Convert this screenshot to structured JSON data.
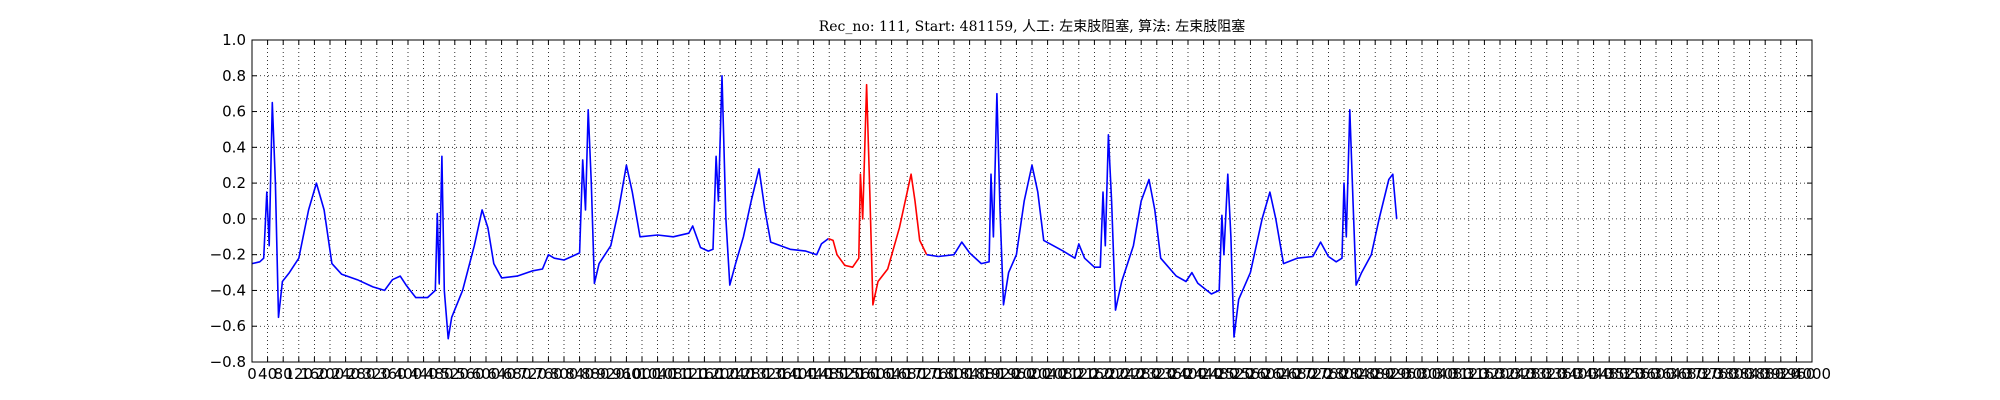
{
  "chart_data": {
    "type": "line",
    "title": "Rec_no: 111, Start: 481159, 人工: 左束肢阻塞, 算法: 左束肢阻塞",
    "xlabel": "",
    "ylabel": "",
    "xlim": [
      0,
      4000
    ],
    "ylim": [
      -0.8,
      1.0
    ],
    "grid": true,
    "x_tick_values": [
      0,
      40,
      80,
      120,
      160,
      200,
      240,
      280,
      320,
      360,
      400,
      440,
      480,
      520,
      560,
      600,
      640,
      680,
      720,
      760,
      800,
      840,
      880,
      920,
      960,
      1000,
      1040,
      1080,
      1120,
      1160,
      1200,
      1240,
      1280,
      1320,
      1360,
      1400,
      1440,
      1480,
      1520,
      1560,
      1600,
      1640,
      1680,
      1720,
      1760,
      1800,
      1840,
      1880,
      1920,
      1960,
      2000,
      2040,
      2080,
      2120,
      2160,
      2200,
      2240,
      2280,
      2320,
      2360,
      2400,
      2440,
      2480,
      2520,
      2560,
      2600,
      2640,
      2680,
      2720,
      2760,
      2800,
      2840,
      2880,
      2920,
      2960,
      3000,
      3040,
      3080,
      3120,
      3160,
      3200,
      3240,
      3280,
      3320,
      3360,
      3400,
      3440,
      3480,
      3520,
      3560,
      3600,
      3640,
      3680,
      3720,
      3760,
      3800,
      3840,
      3880,
      3920,
      3960,
      4000
    ],
    "x_tick_labels": [
      "0",
      "40",
      "80",
      "120",
      "160",
      "200",
      "240",
      "280",
      "320",
      "360",
      "400",
      "440",
      "480",
      "520",
      "560",
      "600",
      "640",
      "680",
      "720",
      "760",
      "800",
      "840",
      "880",
      "920",
      "960",
      "1000",
      "1040",
      "1080",
      "1120",
      "1160",
      "1200",
      "1240",
      "1280",
      "1320",
      "1360",
      "1400",
      "1440",
      "1480",
      "1520",
      "1560",
      "1600",
      "1640",
      "1680",
      "1720",
      "1760",
      "1800",
      "1840",
      "1880",
      "1920",
      "1960",
      "2000",
      "2040",
      "2080",
      "2120",
      "2160",
      "2200",
      "2240",
      "2280",
      "2320",
      "2360",
      "2400",
      "2440",
      "2480",
      "2520",
      "2560",
      "2600",
      "2640",
      "2680",
      "2720",
      "2760",
      "2800",
      "2840",
      "2880",
      "2920",
      "2960",
      "3000",
      "3040",
      "3080",
      "3120",
      "3160",
      "3200",
      "3240",
      "3280",
      "3320",
      "3360",
      "3400",
      "3440",
      "3480",
      "3520",
      "3560",
      "3600",
      "3640",
      "3680",
      "3720",
      "3760",
      "3800",
      "3840",
      "3880",
      "3920",
      "3960",
      "4000"
    ],
    "y_ticks": [
      1.0,
      0.8,
      0.6,
      0.4,
      0.2,
      0.0,
      -0.2,
      -0.4,
      -0.6,
      -0.8
    ],
    "y_tick_labels": [
      "1.0",
      "0.8",
      "0.6",
      "0.4",
      "0.2",
      "0.0",
      "−0.2",
      "−0.4",
      "−0.6",
      "−0.8"
    ],
    "series": [
      {
        "color": "#0000ff",
        "segment": "before",
        "points": [
          [
            0,
            -0.25
          ],
          [
            20,
            -0.24
          ],
          [
            30,
            -0.22
          ],
          [
            38,
            0.15
          ],
          [
            44,
            -0.15
          ],
          [
            52,
            0.65
          ],
          [
            60,
            0.2
          ],
          [
            68,
            -0.55
          ],
          [
            78,
            -0.35
          ],
          [
            96,
            -0.3
          ],
          [
            120,
            -0.22
          ],
          [
            145,
            0.05
          ],
          [
            165,
            0.2
          ],
          [
            185,
            0.05
          ],
          [
            205,
            -0.25
          ],
          [
            230,
            -0.31
          ],
          [
            270,
            -0.34
          ],
          [
            310,
            -0.38
          ],
          [
            340,
            -0.4
          ],
          [
            360,
            -0.34
          ],
          [
            380,
            -0.32
          ],
          [
            395,
            -0.37
          ],
          [
            420,
            -0.44
          ],
          [
            450,
            -0.44
          ],
          [
            470,
            -0.4
          ],
          [
            475,
            0.03
          ],
          [
            480,
            -0.36
          ],
          [
            487,
            0.35
          ],
          [
            493,
            -0.4
          ],
          [
            503,
            -0.67
          ],
          [
            512,
            -0.55
          ],
          [
            540,
            -0.4
          ],
          [
            570,
            -0.15
          ],
          [
            590,
            0.05
          ],
          [
            605,
            -0.05
          ],
          [
            620,
            -0.25
          ],
          [
            640,
            -0.33
          ],
          [
            680,
            -0.32
          ],
          [
            720,
            -0.29
          ],
          [
            745,
            -0.28
          ],
          [
            760,
            -0.2
          ],
          [
            775,
            -0.22
          ],
          [
            800,
            -0.23
          ],
          [
            820,
            -0.21
          ],
          [
            840,
            -0.19
          ],
          [
            848,
            0.33
          ],
          [
            855,
            0.05
          ],
          [
            862,
            0.61
          ],
          [
            870,
            0.2
          ],
          [
            878,
            -0.36
          ],
          [
            890,
            -0.25
          ],
          [
            920,
            -0.15
          ],
          [
            940,
            0.05
          ],
          [
            960,
            0.3
          ],
          [
            975,
            0.15
          ],
          [
            995,
            -0.1
          ],
          [
            1040,
            -0.09
          ],
          [
            1080,
            -0.1
          ],
          [
            1120,
            -0.08
          ],
          [
            1130,
            -0.04
          ],
          [
            1150,
            -0.16
          ],
          [
            1170,
            -0.18
          ],
          [
            1182,
            -0.17
          ],
          [
            1190,
            0.35
          ],
          [
            1196,
            0.1
          ],
          [
            1205,
            0.8
          ],
          [
            1215,
            0.0
          ],
          [
            1225,
            -0.37
          ],
          [
            1240,
            -0.25
          ],
          [
            1260,
            -0.1
          ],
          [
            1280,
            0.1
          ],
          [
            1300,
            0.28
          ],
          [
            1315,
            0.05
          ],
          [
            1330,
            -0.13
          ],
          [
            1380,
            -0.17
          ],
          [
            1420,
            -0.18
          ],
          [
            1448,
            -0.2
          ],
          [
            1460,
            -0.14
          ],
          [
            1478,
            -0.11
          ]
        ]
      },
      {
        "color": "#ff0000",
        "segment": "highlighted",
        "points": [
          [
            1478,
            -0.11
          ],
          [
            1490,
            -0.12
          ],
          [
            1500,
            -0.2
          ],
          [
            1520,
            -0.26
          ],
          [
            1540,
            -0.27
          ],
          [
            1556,
            -0.22
          ],
          [
            1560,
            0.25
          ],
          [
            1566,
            0.0
          ],
          [
            1576,
            0.75
          ],
          [
            1584,
            0.15
          ],
          [
            1592,
            -0.48
          ],
          [
            1605,
            -0.35
          ],
          [
            1630,
            -0.28
          ],
          [
            1660,
            -0.05
          ],
          [
            1680,
            0.15
          ],
          [
            1690,
            0.25
          ],
          [
            1700,
            0.1
          ],
          [
            1712,
            -0.12
          ],
          [
            1730,
            -0.2
          ]
        ]
      },
      {
        "color": "#0000ff",
        "segment": "after",
        "points": [
          [
            1730,
            -0.2
          ],
          [
            1760,
            -0.21
          ],
          [
            1800,
            -0.2
          ],
          [
            1820,
            -0.13
          ],
          [
            1840,
            -0.19
          ],
          [
            1870,
            -0.25
          ],
          [
            1890,
            -0.24
          ],
          [
            1895,
            0.25
          ],
          [
            1901,
            -0.1
          ],
          [
            1910,
            0.7
          ],
          [
            1918,
            0.05
          ],
          [
            1927,
            -0.48
          ],
          [
            1940,
            -0.3
          ],
          [
            1960,
            -0.2
          ],
          [
            1980,
            0.1
          ],
          [
            2000,
            0.3
          ],
          [
            2015,
            0.15
          ],
          [
            2030,
            -0.12
          ],
          [
            2080,
            -0.18
          ],
          [
            2110,
            -0.22
          ],
          [
            2120,
            -0.14
          ],
          [
            2135,
            -0.22
          ],
          [
            2160,
            -0.27
          ],
          [
            2175,
            -0.27
          ],
          [
            2182,
            0.15
          ],
          [
            2188,
            -0.15
          ],
          [
            2196,
            0.47
          ],
          [
            2204,
            0.1
          ],
          [
            2214,
            -0.51
          ],
          [
            2230,
            -0.35
          ],
          [
            2260,
            -0.15
          ],
          [
            2280,
            0.1
          ],
          [
            2300,
            0.22
          ],
          [
            2315,
            0.05
          ],
          [
            2330,
            -0.22
          ],
          [
            2370,
            -0.32
          ],
          [
            2395,
            -0.35
          ],
          [
            2410,
            -0.3
          ],
          [
            2425,
            -0.36
          ],
          [
            2460,
            -0.42
          ],
          [
            2480,
            -0.4
          ],
          [
            2487,
            0.02
          ],
          [
            2492,
            -0.2
          ],
          [
            2502,
            0.25
          ],
          [
            2510,
            -0.1
          ],
          [
            2518,
            -0.66
          ],
          [
            2530,
            -0.45
          ],
          [
            2560,
            -0.3
          ],
          [
            2590,
            0.0
          ],
          [
            2610,
            0.15
          ],
          [
            2625,
            0.0
          ],
          [
            2645,
            -0.25
          ],
          [
            2680,
            -0.22
          ],
          [
            2720,
            -0.21
          ],
          [
            2740,
            -0.13
          ],
          [
            2760,
            -0.21
          ],
          [
            2780,
            -0.24
          ],
          [
            2795,
            -0.22
          ],
          [
            2800,
            0.2
          ],
          [
            2806,
            -0.1
          ],
          [
            2815,
            0.61
          ],
          [
            2823,
            0.1
          ],
          [
            2831,
            -0.37
          ],
          [
            2845,
            -0.3
          ],
          [
            2870,
            -0.2
          ],
          [
            2890,
            0.0
          ],
          [
            2915,
            0.22
          ],
          [
            2925,
            0.25
          ],
          [
            2935,
            0.0
          ]
        ]
      }
    ]
  }
}
